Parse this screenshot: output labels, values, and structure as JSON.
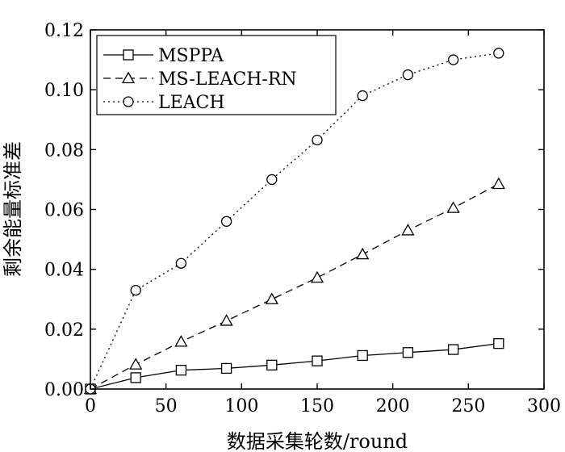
{
  "chart_data": {
    "type": "line",
    "title": "",
    "xlabel": "数据采集轮数/round",
    "ylabel": "剩余能量标准差",
    "xlim": [
      0,
      300
    ],
    "ylim": [
      0,
      0.12
    ],
    "xticks": [
      0,
      50,
      100,
      150,
      200,
      250,
      300
    ],
    "yticks": [
      0.0,
      0.02,
      0.04,
      0.06,
      0.08,
      0.1,
      0.12
    ],
    "xtick_labels": [
      "0",
      "50",
      "100",
      "150",
      "200",
      "250",
      "300"
    ],
    "ytick_labels": [
      "0.00",
      "0.02",
      "0.04",
      "0.06",
      "0.08",
      "0.10",
      "0.12"
    ],
    "x": [
      0,
      30,
      60,
      90,
      120,
      150,
      180,
      210,
      240,
      270
    ],
    "legend_position": "top-left",
    "grid": false,
    "series": [
      {
        "name": "MSPPA",
        "marker": "square",
        "line_style": "solid",
        "values": [
          0.0,
          0.0038,
          0.0063,
          0.0069,
          0.008,
          0.0094,
          0.0112,
          0.0122,
          0.0132,
          0.0152
        ]
      },
      {
        "name": "MS-LEACH-RN",
        "marker": "triangle",
        "line_style": "dashed",
        "values": [
          0.0,
          0.0082,
          0.0158,
          0.0228,
          0.03,
          0.0372,
          0.045,
          0.053,
          0.0605,
          0.0685
        ]
      },
      {
        "name": "LEACH",
        "marker": "circle",
        "line_style": "dotted",
        "values": [
          0.0,
          0.033,
          0.042,
          0.056,
          0.07,
          0.0832,
          0.098,
          0.105,
          0.11,
          0.1122
        ]
      }
    ]
  }
}
